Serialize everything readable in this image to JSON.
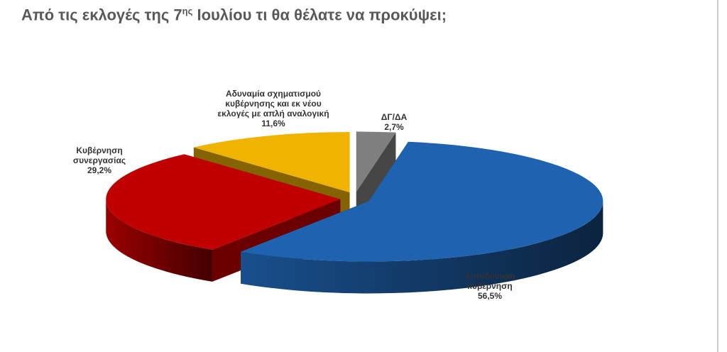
{
  "chart_data": {
    "type": "pie3d",
    "title": [
      "Από τις εκλογές της 7",
      "ης",
      " Ιουλίου τι θα θέλατε να προκύψει;"
    ],
    "categories": [
      "ΔΓ/ΔΑ",
      "Αυτοδύναμη κυβέρνηση",
      "Κυβέρνηση συνεργασίας",
      "Αδυναμία σχηματισμού κυβέρνησης και εκ νέου εκλογές με απλή αναλογική"
    ],
    "values": [
      2.7,
      56.5,
      29.2,
      11.6
    ],
    "value_labels": [
      "2,7%",
      "56,5%",
      "29,2%",
      "11,6%"
    ],
    "colors": [
      "#7f7f7f",
      "#1f63b0",
      "#c00000",
      "#f0b400"
    ]
  }
}
